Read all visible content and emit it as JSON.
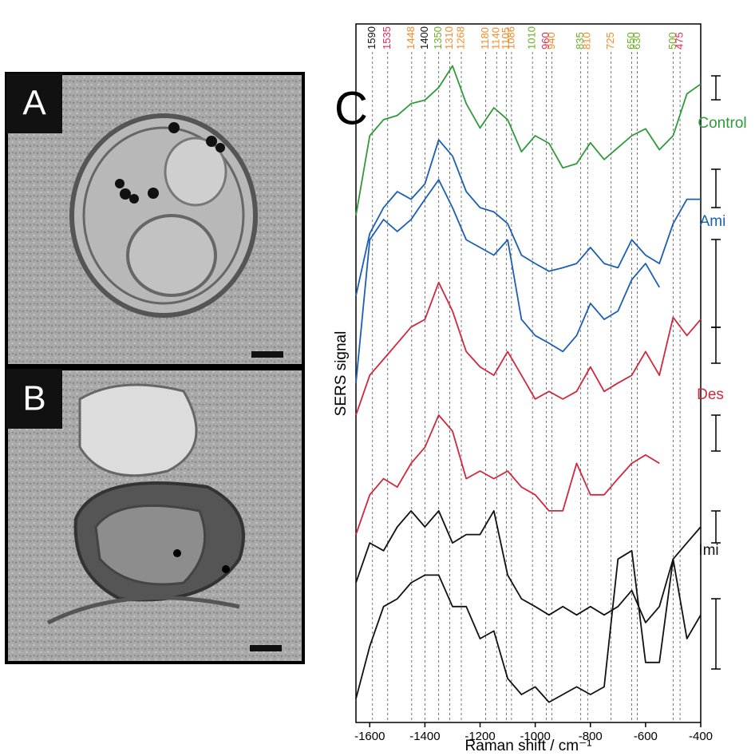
{
  "panels": {
    "a": "A",
    "b": "B",
    "c": "C"
  },
  "chart_data": {
    "type": "line",
    "xlabel": "Raman shift / cm⁻¹",
    "ylabel": "SERS signal",
    "xlim": [
      -1650,
      -400
    ],
    "ylim": [
      0,
      100
    ],
    "xticks": [
      -1600,
      -1400,
      -1200,
      -1000,
      -800,
      -600,
      -400
    ],
    "x": [
      -1650,
      -1600,
      -1550,
      -1500,
      -1450,
      -1400,
      -1350,
      -1300,
      -1250,
      -1200,
      -1150,
      -1100,
      -1050,
      -1000,
      -950,
      -900,
      -850,
      -800,
      -750,
      -700,
      -650,
      -600,
      -550,
      -500,
      -450,
      -400
    ],
    "peaks": [
      {
        "value": -1590,
        "label": "1590",
        "color": "#111111"
      },
      {
        "value": -1535,
        "label": "1535",
        "color": "#e8254f"
      },
      {
        "value": -1448,
        "label": "1448",
        "color": "#f28c28"
      },
      {
        "value": -1400,
        "label": "1400",
        "color": "#111111"
      },
      {
        "value": -1350,
        "label": "1350",
        "color": "#6ab024"
      },
      {
        "value": -1310,
        "label": "1310",
        "color": "#f28c28"
      },
      {
        "value": -1268,
        "label": "1268",
        "color": "#f28c28"
      },
      {
        "value": -1180,
        "label": "1180",
        "color": "#f28c28"
      },
      {
        "value": -1140,
        "label": "1140",
        "color": "#f28c28"
      },
      {
        "value": -1105,
        "label": "1105",
        "color": "#f28c28"
      },
      {
        "value": -1086,
        "label": "1086",
        "color": "#f28c28"
      },
      {
        "value": -1010,
        "label": "1010",
        "color": "#6ab024"
      },
      {
        "value": -960,
        "label": "960",
        "color": "#e8254f"
      },
      {
        "value": -940,
        "label": "940",
        "color": "#f28c28"
      },
      {
        "value": -835,
        "label": "835",
        "color": "#6ab024"
      },
      {
        "value": -810,
        "label": "810",
        "color": "#f28c28"
      },
      {
        "value": -725,
        "label": "725",
        "color": "#f28c28"
      },
      {
        "value": -650,
        "label": "650",
        "color": "#6ab024"
      },
      {
        "value": -630,
        "label": "630",
        "color": "#6ab024"
      },
      {
        "value": -500,
        "label": "500",
        "color": "#6ab024"
      },
      {
        "value": -475,
        "label": "475",
        "color": "#e8254f"
      }
    ],
    "trace_labels": [
      {
        "text": "Control",
        "color": "#2e9a3a"
      },
      {
        "text": "Ami",
        "color": "#1a5fb4"
      },
      {
        "text": "Des",
        "color": "#d0283c"
      },
      {
        "text": "Imi",
        "color": "#111111"
      }
    ],
    "series": [
      {
        "color": "#2e9a3a",
        "values": [
          72.6,
          84,
          86.3,
          86.9,
          88.6,
          89.1,
          90.9,
          94,
          88.6,
          85.1,
          88,
          86.3,
          81.7,
          84,
          82.9,
          79.4,
          80,
          83,
          80.6,
          82.3,
          84,
          85,
          82,
          84,
          90,
          91.4
        ]
      },
      {
        "color": "#1a5fb4",
        "values": [
          61.1,
          70,
          73.7,
          76,
          74.9,
          77.1,
          83.4,
          81.1,
          76,
          73.7,
          73.1,
          71.4,
          66.9,
          65.7,
          64.6,
          65.1,
          65.7,
          68,
          65.7,
          65.1,
          69.1,
          66.9,
          65.7,
          71.4,
          74.9,
          74.9
        ]
      },
      {
        "color": "#1a5fb4",
        "values": [
          48.6,
          69.1,
          72,
          70.3,
          72,
          74.9,
          77.7,
          73.7,
          69.1,
          68,
          66.9,
          69.1,
          57.7,
          55.4,
          54.3,
          53.1,
          55.4,
          60,
          57.7,
          58.9,
          63.4,
          65.7,
          62.3,
          null,
          null,
          null
        ]
      },
      {
        "color": "#d0283c",
        "values": [
          44,
          49.7,
          52,
          54.3,
          56.6,
          57.7,
          63,
          58.9,
          53.1,
          50.9,
          49.7,
          53.1,
          49.7,
          46.3,
          47.4,
          46.3,
          47.4,
          50.9,
          47.4,
          48.6,
          49.7,
          53.1,
          49.7,
          58,
          55.4,
          57.7
        ]
      },
      {
        "color": "#d0283c",
        "values": [
          26.9,
          32.6,
          34.9,
          33.7,
          37.1,
          39.4,
          44,
          41.7,
          34.9,
          36,
          34.9,
          36,
          33.7,
          32.6,
          30.3,
          30.3,
          37.1,
          32.6,
          32.6,
          34.9,
          37.1,
          38.3,
          37.1,
          null,
          null,
          null
        ]
      },
      {
        "color": "#111111",
        "values": [
          20,
          25.7,
          24.6,
          28,
          30.3,
          28,
          30.3,
          25.7,
          26.9,
          26.9,
          30.3,
          21.1,
          17.7,
          16.6,
          15.4,
          16.6,
          15.4,
          16.6,
          15.4,
          16.6,
          18.9,
          14.3,
          16.6,
          23.4,
          25.7,
          28
        ]
      },
      {
        "color": "#111111",
        "values": [
          3.4,
          10.9,
          16.6,
          17.7,
          20,
          21.1,
          21.1,
          16.6,
          16.6,
          12,
          13.1,
          6.3,
          4,
          5.1,
          2.9,
          4,
          5.1,
          4,
          5.1,
          23.4,
          24.6,
          8.6,
          8.6,
          23.4,
          12,
          15.4
        ]
      }
    ]
  }
}
